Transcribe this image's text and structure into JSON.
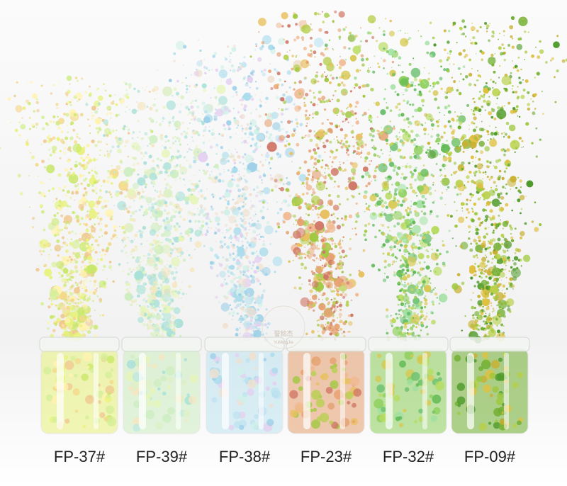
{
  "labels": [
    "FP-37#",
    "FP-39#",
    "FP-38#",
    "FP-23#",
    "FP-32#",
    "FP-09#"
  ],
  "watermark": {
    "brand": "誉铭杰",
    "pinyin": "YuMingJie"
  }
}
